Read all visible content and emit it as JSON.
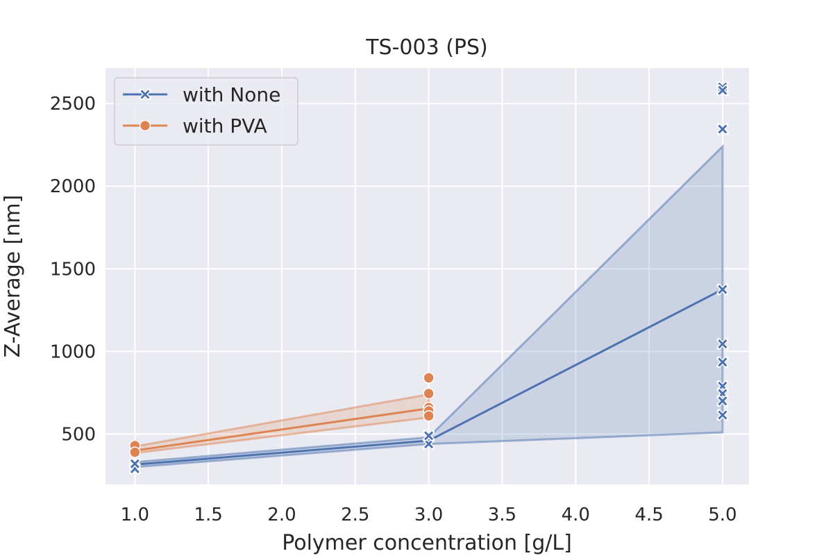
{
  "chart_data": {
    "type": "line",
    "title": "TS-003 (PS)",
    "xlabel": "Polymer concentration [g/L]",
    "ylabel": "Z-Average [nm]",
    "xlim": [
      0.8,
      5.18
    ],
    "ylim": [
      195,
      2715
    ],
    "x_ticks": [
      1.0,
      1.5,
      2.0,
      2.5,
      3.0,
      3.5,
      4.0,
      4.5,
      5.0
    ],
    "x_tick_labels": [
      "1.0",
      "1.5",
      "2.0",
      "2.5",
      "3.0",
      "3.5",
      "4.0",
      "4.5",
      "5.0"
    ],
    "y_ticks": [
      500,
      1000,
      1500,
      2000,
      2500
    ],
    "y_tick_labels": [
      "500",
      "1000",
      "1500",
      "2000",
      "2500"
    ],
    "grid": true,
    "legend_position": "top-left",
    "series": [
      {
        "name": "with None",
        "color": "#4c72b0",
        "marker": "x",
        "x": [
          1.0,
          3.0,
          5.0
        ],
        "mean": [
          315,
          460,
          1375
        ],
        "ci_low": [
          300,
          440,
          510
        ],
        "ci_high": [
          330,
          480,
          2240
        ],
        "points": [
          {
            "x": 1.0,
            "y": 290
          },
          {
            "x": 1.0,
            "y": 320
          },
          {
            "x": 3.0,
            "y": 440
          },
          {
            "x": 3.0,
            "y": 490
          },
          {
            "x": 5.0,
            "y": 2600
          },
          {
            "x": 5.0,
            "y": 2580
          },
          {
            "x": 5.0,
            "y": 2345
          },
          {
            "x": 5.0,
            "y": 1375
          },
          {
            "x": 5.0,
            "y": 1045
          },
          {
            "x": 5.0,
            "y": 935
          },
          {
            "x": 5.0,
            "y": 790
          },
          {
            "x": 5.0,
            "y": 745
          },
          {
            "x": 5.0,
            "y": 700
          },
          {
            "x": 5.0,
            "y": 615
          }
        ]
      },
      {
        "name": "with PVA",
        "color": "#dd8452",
        "marker": "o",
        "x": [
          1.0,
          3.0
        ],
        "mean": [
          400,
          655
        ],
        "ci_low": [
          385,
          600
        ],
        "ci_high": [
          425,
          740
        ],
        "points": [
          {
            "x": 1.0,
            "y": 430
          },
          {
            "x": 1.0,
            "y": 390
          },
          {
            "x": 3.0,
            "y": 840
          },
          {
            "x": 3.0,
            "y": 745
          },
          {
            "x": 3.0,
            "y": 660
          },
          {
            "x": 3.0,
            "y": 640
          },
          {
            "x": 3.0,
            "y": 610
          }
        ]
      }
    ]
  }
}
